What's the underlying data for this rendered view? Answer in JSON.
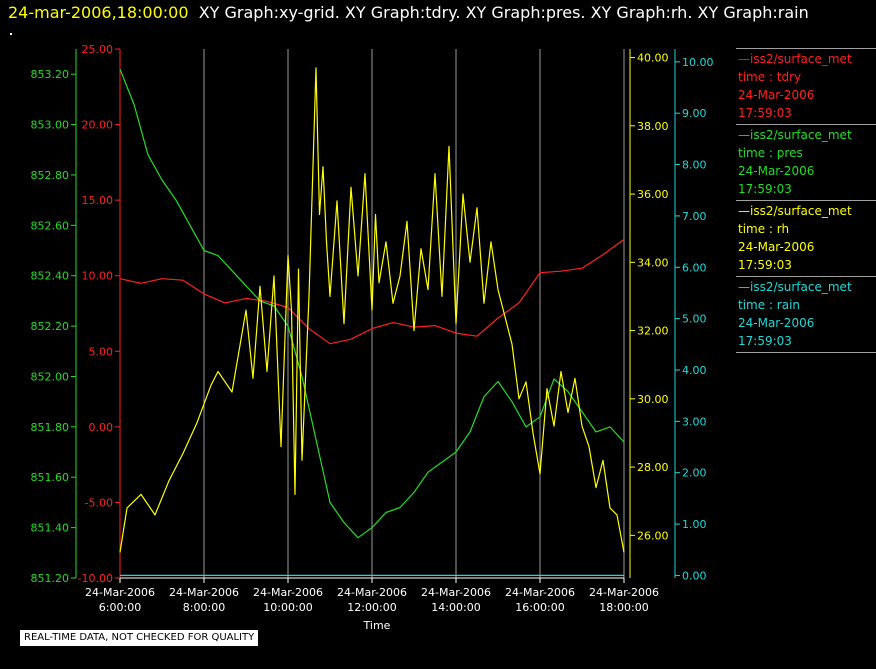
{
  "header": {
    "timestamp": "24-mar-2006,18:00:00",
    "graphs": "XY Graph:xy-grid.  XY Graph:tdry.  XY Graph:pres.  XY Graph:rh.  XY Graph:rain"
  },
  "disclaimer": "REAL-TIME DATA, NOT CHECKED FOR QUALITY",
  "colors": {
    "background": "#000000",
    "tdry": "#ff2020",
    "pres": "#22dd22",
    "rh": "#ffff00",
    "rain": "#20d8d8",
    "grid": "#9a9a9a",
    "text": "#ffffff"
  },
  "legend": [
    {
      "name": "—iss2/surface_met",
      "var": "time : tdry",
      "date": "24-Mar-2006",
      "time": "17:59:03",
      "color": "#ff2020"
    },
    {
      "name": "—iss2/surface_met",
      "var": "time : pres",
      "date": "24-Mar-2006",
      "time": "17:59:03",
      "color": "#22dd22"
    },
    {
      "name": "—iss2/surface_met",
      "var": "time : rh",
      "date": "24-Mar-2006",
      "time": "17:59:03",
      "color": "#ffff00"
    },
    {
      "name": "—iss2/surface_met",
      "var": "time : rain",
      "date": "24-Mar-2006",
      "time": "17:59:03",
      "color": "#20d8d8"
    }
  ],
  "chart_data": {
    "type": "line",
    "xlabel": "Time",
    "x_range": [
      "06:00",
      "18:00"
    ],
    "x_ticks": [
      {
        "t": "06:00",
        "date": "24-Mar-2006",
        "time": "6:00:00"
      },
      {
        "t": "08:00",
        "date": "24-Mar-2006",
        "time": "8:00:00"
      },
      {
        "t": "10:00",
        "date": "24-Mar-2006",
        "time": "10:00:00"
      },
      {
        "t": "12:00",
        "date": "24-Mar-2006",
        "time": "12:00:00"
      },
      {
        "t": "14:00",
        "date": "24-Mar-2006",
        "time": "14:00:00"
      },
      {
        "t": "16:00",
        "date": "24-Mar-2006",
        "time": "16:00:00"
      },
      {
        "t": "18:00",
        "date": "24-Mar-2006",
        "time": "18:00:00"
      }
    ],
    "grid": "vertical",
    "axes": [
      {
        "id": "pres",
        "side": "left-outer",
        "range": [
          851.2,
          853.3
        ],
        "ticks": [
          "851.20",
          "851.40",
          "851.60",
          "851.80",
          "852.00",
          "852.20",
          "852.40",
          "852.60",
          "852.80",
          "853.00",
          "853.20"
        ]
      },
      {
        "id": "tdry",
        "side": "left-inner",
        "range": [
          -10,
          25
        ],
        "ticks": [
          "-10.00",
          "-5.00",
          "0.00",
          "5.00",
          "10.00",
          "15.00",
          "20.00",
          "25.00"
        ]
      },
      {
        "id": "rh",
        "side": "right-inner",
        "range": [
          24.75,
          40.25
        ],
        "ticks": [
          "26.00",
          "28.00",
          "30.00",
          "32.00",
          "34.00",
          "36.00",
          "38.00",
          "40.00"
        ]
      },
      {
        "id": "rain",
        "side": "right-outer",
        "range": [
          -0.05,
          10.25
        ],
        "ticks": [
          "0.00",
          "1.00",
          "2.00",
          "3.00",
          "4.00",
          "5.00",
          "6.00",
          "7.00",
          "8.00",
          "9.00",
          "10.00"
        ]
      }
    ],
    "series": [
      {
        "name": "tdry",
        "axis": "tdry",
        "x": [
          "06:00",
          "06:30",
          "07:00",
          "07:30",
          "08:00",
          "08:30",
          "09:00",
          "09:30",
          "10:00",
          "10:30",
          "11:00",
          "11:30",
          "12:00",
          "12:30",
          "13:00",
          "13:30",
          "14:00",
          "14:30",
          "15:00",
          "15:30",
          "16:00",
          "16:30",
          "17:00",
          "17:30",
          "18:00"
        ],
        "y": [
          9.8,
          9.5,
          9.8,
          9.7,
          8.8,
          8.2,
          8.5,
          8.3,
          7.9,
          6.5,
          5.5,
          5.8,
          6.5,
          6.9,
          6.6,
          6.7,
          6.2,
          6.0,
          7.2,
          8.2,
          10.2,
          10.3,
          10.5,
          11.4,
          12.4
        ]
      },
      {
        "name": "pres",
        "axis": "pres",
        "x": [
          "06:00",
          "06:20",
          "06:40",
          "07:00",
          "07:20",
          "07:40",
          "08:00",
          "08:20",
          "08:40",
          "09:00",
          "09:20",
          "09:40",
          "10:00",
          "10:20",
          "10:40",
          "11:00",
          "11:20",
          "11:40",
          "12:00",
          "12:20",
          "12:40",
          "13:00",
          "13:20",
          "13:40",
          "14:00",
          "14:20",
          "14:40",
          "15:00",
          "15:20",
          "15:40",
          "16:00",
          "16:20",
          "16:40",
          "17:00",
          "17:20",
          "17:40",
          "18:00"
        ],
        "y": [
          853.22,
          853.08,
          852.88,
          852.78,
          852.7,
          852.6,
          852.5,
          852.48,
          852.42,
          852.36,
          852.3,
          852.28,
          852.2,
          852.0,
          851.75,
          851.5,
          851.42,
          851.36,
          851.4,
          851.46,
          851.48,
          851.54,
          851.62,
          851.66,
          851.7,
          851.78,
          851.92,
          851.98,
          851.9,
          851.8,
          851.84,
          851.99,
          851.94,
          851.86,
          851.78,
          851.8,
          851.74
        ]
      },
      {
        "name": "rh",
        "axis": "rh",
        "x": [
          "06:00",
          "06:10",
          "06:30",
          "06:50",
          "07:10",
          "07:30",
          "07:50",
          "08:10",
          "08:20",
          "08:40",
          "09:00",
          "09:10",
          "09:20",
          "09:30",
          "09:40",
          "09:50",
          "10:00",
          "10:05",
          "10:10",
          "10:15",
          "10:20",
          "10:30",
          "10:40",
          "10:45",
          "10:50",
          "10:55",
          "11:00",
          "11:10",
          "11:20",
          "11:30",
          "11:40",
          "11:50",
          "12:00",
          "12:05",
          "12:10",
          "12:20",
          "12:30",
          "12:40",
          "12:50",
          "13:00",
          "13:10",
          "13:20",
          "13:30",
          "13:40",
          "13:50",
          "14:00",
          "14:10",
          "14:20",
          "14:30",
          "14:40",
          "14:50",
          "15:00",
          "15:10",
          "15:20",
          "15:30",
          "15:40",
          "15:50",
          "16:00",
          "16:10",
          "16:20",
          "16:30",
          "16:40",
          "16:50",
          "17:00",
          "17:10",
          "17:20",
          "17:30",
          "17:40",
          "17:50",
          "18:00"
        ],
        "y": [
          25.5,
          26.8,
          27.2,
          26.6,
          27.6,
          28.4,
          29.3,
          30.4,
          30.8,
          30.2,
          32.6,
          30.6,
          33.3,
          30.8,
          33.6,
          28.6,
          34.2,
          32.6,
          27.2,
          33.8,
          28.2,
          33.0,
          39.7,
          35.4,
          36.8,
          34.6,
          33.0,
          35.8,
          32.2,
          36.2,
          33.6,
          36.6,
          32.6,
          35.4,
          33.4,
          34.6,
          32.8,
          33.6,
          35.2,
          32.0,
          34.4,
          33.2,
          36.6,
          33.0,
          37.4,
          32.2,
          36.0,
          34.0,
          35.6,
          32.8,
          34.6,
          33.2,
          32.4,
          31.6,
          30.0,
          30.5,
          29.0,
          27.8,
          30.3,
          29.2,
          30.8,
          29.6,
          30.6,
          29.2,
          28.6,
          27.4,
          28.2,
          26.8,
          26.6,
          25.5
        ]
      },
      {
        "name": "rain",
        "axis": "rain",
        "x": [
          "06:00",
          "18:00"
        ],
        "y": [
          0.0,
          0.0
        ]
      }
    ]
  }
}
